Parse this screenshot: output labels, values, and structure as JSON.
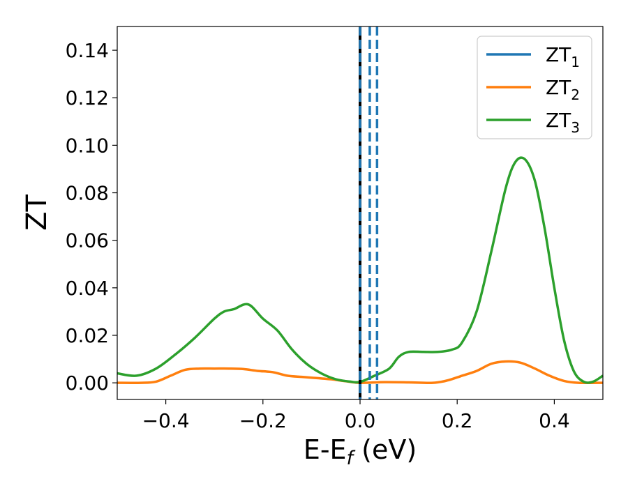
{
  "chart_data": {
    "type": "line",
    "xlabel": "E-E",
    "xlabel_sub": "f",
    "xlabel_unit": " (eV)",
    "ylabel": "ZT",
    "xlim": [
      -0.5,
      0.5
    ],
    "ylim": [
      -0.007,
      0.15
    ],
    "x_ticks": [
      -0.4,
      -0.2,
      0.0,
      0.2,
      0.4
    ],
    "x_tick_labels": [
      "−0.4",
      "−0.2",
      "0.0",
      "0.2",
      "0.4"
    ],
    "y_ticks": [
      0.0,
      0.02,
      0.04,
      0.06,
      0.08,
      0.1,
      0.12,
      0.14
    ],
    "y_tick_labels": [
      "0.00",
      "0.02",
      "0.04",
      "0.06",
      "0.08",
      "0.10",
      "0.12",
      "0.14"
    ],
    "grid": false,
    "legend_position": "top-right",
    "vertical_lines": [
      {
        "x": 0.0,
        "style": "solid",
        "color": "#000000"
      },
      {
        "x": 0.0,
        "style": "dashed",
        "color": "#1f77b4"
      },
      {
        "x": 0.02,
        "style": "dashed",
        "color": "#1f77b4"
      },
      {
        "x": 0.035,
        "style": "dashed",
        "color": "#1f77b4"
      }
    ],
    "series": [
      {
        "name": "ZT",
        "subscript": "1",
        "color": "#1f77b4",
        "x": [],
        "y": []
      },
      {
        "name": "ZT",
        "subscript": "2",
        "color": "#ff7f0e",
        "x": [
          -0.5,
          -0.45,
          -0.42,
          -0.39,
          -0.36,
          -0.33,
          -0.3,
          -0.27,
          -0.24,
          -0.21,
          -0.18,
          -0.15,
          -0.12,
          -0.09,
          -0.06,
          -0.03,
          0.0,
          0.05,
          0.1,
          0.15,
          0.18,
          0.21,
          0.24,
          0.27,
          0.3,
          0.33,
          0.36,
          0.39,
          0.42,
          0.45,
          0.5
        ],
        "y": [
          0.0,
          0.0,
          0.0005,
          0.003,
          0.0055,
          0.006,
          0.006,
          0.006,
          0.0058,
          0.005,
          0.0045,
          0.003,
          0.0025,
          0.002,
          0.0015,
          0.0007,
          0.0,
          0.0003,
          0.0002,
          0.0,
          0.001,
          0.003,
          0.005,
          0.008,
          0.009,
          0.0085,
          0.006,
          0.003,
          0.0008,
          0.0,
          0.0
        ]
      },
      {
        "name": "ZT",
        "subscript": "3",
        "color": "#2ca02c",
        "x": [
          -0.5,
          -0.46,
          -0.42,
          -0.38,
          -0.34,
          -0.3,
          -0.28,
          -0.26,
          -0.23,
          -0.2,
          -0.17,
          -0.14,
          -0.11,
          -0.08,
          -0.05,
          -0.02,
          0.0,
          0.03,
          0.06,
          0.08,
          0.1,
          0.13,
          0.16,
          0.19,
          0.21,
          0.24,
          0.27,
          0.3,
          0.32,
          0.34,
          0.36,
          0.38,
          0.4,
          0.42,
          0.44,
          0.46,
          0.48,
          0.5
        ],
        "y": [
          0.004,
          0.003,
          0.006,
          0.012,
          0.019,
          0.027,
          0.03,
          0.031,
          0.033,
          0.027,
          0.022,
          0.014,
          0.008,
          0.004,
          0.0015,
          0.0005,
          0.0004,
          0.003,
          0.006,
          0.011,
          0.013,
          0.013,
          0.013,
          0.014,
          0.017,
          0.03,
          0.055,
          0.082,
          0.093,
          0.094,
          0.085,
          0.065,
          0.04,
          0.018,
          0.005,
          0.0005,
          0.0005,
          0.003
        ]
      }
    ]
  }
}
